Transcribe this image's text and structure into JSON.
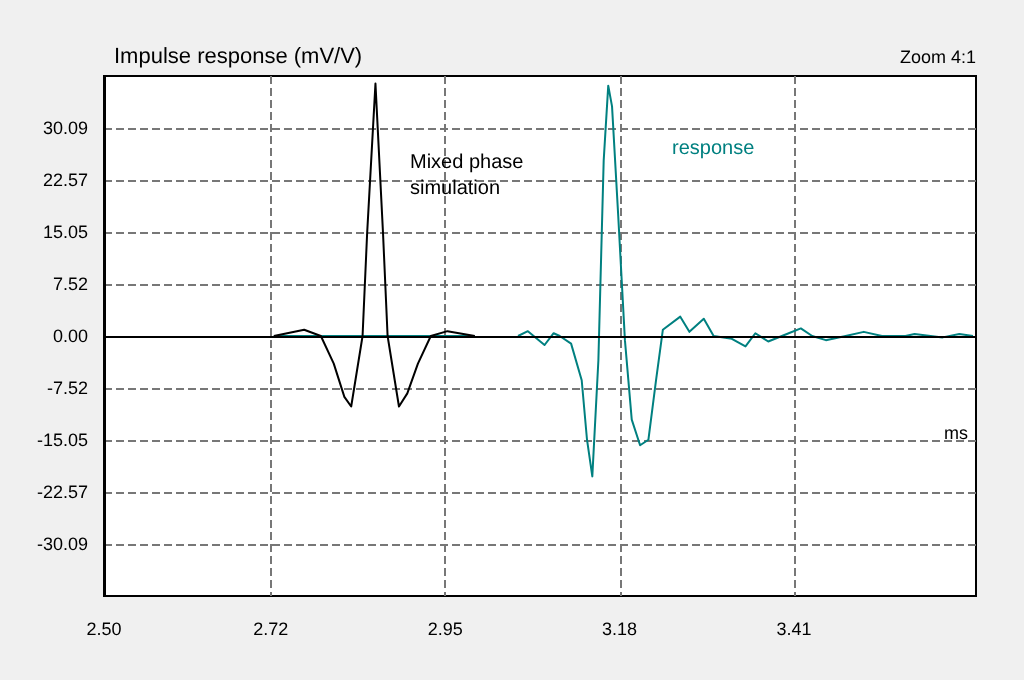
{
  "chart_data": {
    "type": "line",
    "title": "Impulse response (mV/V)",
    "xlabel": "ms",
    "annotations": [
      "Mixed phase\nsimulation",
      "response",
      "Zoom 4:1"
    ],
    "xlim": [
      2.5,
      3.65
    ],
    "xticks": [
      {
        "value": 2.5,
        "label": "2.50"
      },
      2.72,
      2.95,
      3.18,
      3.41
    ],
    "ylim": [
      -37.6,
      37.6
    ],
    "yticks": [
      {
        "value": -30.09,
        "label": "-30.09"
      },
      {
        "value": -22.57,
        "label": "-22.57"
      },
      {
        "value": -15.05,
        "label": "-15.05"
      },
      {
        "value": -7.52,
        "label": "-7.52"
      },
      {
        "value": 0,
        "label": "0.00"
      },
      {
        "value": 7.52,
        "label": "7.52"
      },
      {
        "value": 15.05,
        "label": "15.05"
      },
      {
        "value": 22.57,
        "label": "22.57"
      },
      {
        "value": 30.09,
        "label": "30.09"
      }
    ],
    "grid": true,
    "marker": "none",
    "line_style": "solid",
    "series": [
      {
        "color": "#008080",
        "x": [
          2.724,
          2.989,
          3.02,
          3.046,
          3.059,
          3.081,
          3.093,
          3.101,
          3.116,
          3.13,
          3.137,
          3.144,
          3.152,
          3.159,
          3.165,
          3.17,
          3.178,
          3.187,
          3.196,
          3.207,
          3.218,
          3.228,
          3.237,
          3.26,
          3.272,
          3.291,
          3.304,
          3.328,
          3.346,
          3.359,
          3.376,
          3.403,
          3.419,
          3.434,
          3.452,
          3.478,
          3.502,
          3.526,
          3.557,
          3.569,
          3.606,
          3.628,
          3.646
        ],
        "values": [
          0,
          0,
          null,
          0,
          0.7,
          -1.3,
          0.4,
          0,
          -1.1,
          -6.4,
          -15.0,
          -20.3,
          -3.5,
          25.4,
          36.2,
          33.2,
          17.7,
          -0.6,
          -12.1,
          -15.8,
          -15.0,
          -6.4,
          0.9,
          2.8,
          0.6,
          2.5,
          0,
          -0.4,
          -1.5,
          0.4,
          -0.8,
          0.4,
          1.1,
          0,
          -0.6,
          0,
          0.6,
          0,
          0,
          0.3,
          -0.2,
          0.3,
          0
        ]
      },
      {
        "color": "#000000",
        "x": [
          2.724,
          2.764,
          2.786,
          2.803,
          2.817,
          2.826,
          2.841,
          2.847,
          2.858,
          2.868,
          2.874,
          2.889,
          2.9,
          2.914,
          2.931,
          2.953,
          2.989
        ],
        "values": [
          0,
          0.9,
          0,
          -4.0,
          -8.8,
          -10.2,
          0,
          14.8,
          36.5,
          14.8,
          0,
          -10.2,
          -8.3,
          -4.0,
          0,
          0.7,
          0
        ]
      }
    ]
  }
}
